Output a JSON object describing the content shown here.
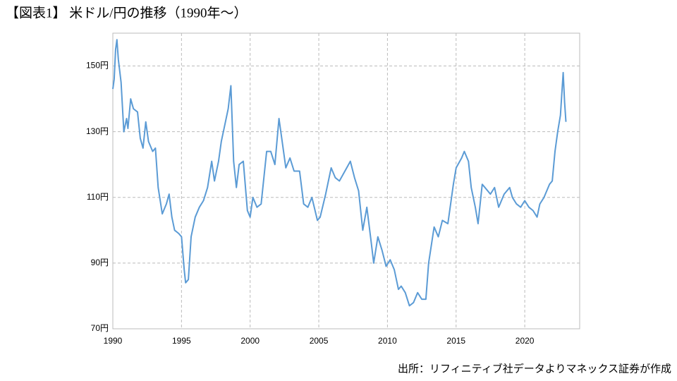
{
  "chart_data": {
    "type": "line",
    "title": "【図表1】 米ドル/円の推移（1990年～）",
    "source": "出所：リフィニティブ社データよりマネックス証券が作成",
    "x": [
      1990.0,
      1990.1,
      1990.2,
      1990.3,
      1990.4,
      1990.6,
      1990.8,
      1991.0,
      1991.1,
      1991.3,
      1991.5,
      1991.8,
      1992.0,
      1992.2,
      1992.4,
      1992.6,
      1992.9,
      1993.1,
      1993.3,
      1993.6,
      1993.9,
      1994.1,
      1994.3,
      1994.5,
      1994.8,
      1995.0,
      1995.2,
      1995.3,
      1995.5,
      1995.7,
      1996.0,
      1996.3,
      1996.6,
      1996.9,
      1997.2,
      1997.4,
      1997.7,
      1997.9,
      1998.2,
      1998.4,
      1998.6,
      1998.8,
      1999.0,
      1999.2,
      1999.5,
      1999.8,
      2000.0,
      2000.2,
      2000.5,
      2000.8,
      2001.0,
      2001.2,
      2001.5,
      2001.8,
      2002.1,
      2002.3,
      2002.6,
      2002.9,
      2003.2,
      2003.6,
      2003.9,
      2004.2,
      2004.5,
      2004.9,
      2005.1,
      2005.5,
      2005.9,
      2006.2,
      2006.5,
      2006.9,
      2007.3,
      2007.6,
      2007.9,
      2008.2,
      2008.5,
      2008.8,
      2009.0,
      2009.3,
      2009.6,
      2009.9,
      2010.2,
      2010.5,
      2010.8,
      2011.0,
      2011.3,
      2011.6,
      2011.9,
      2012.2,
      2012.5,
      2012.8,
      2013.0,
      2013.4,
      2013.7,
      2014.0,
      2014.4,
      2014.8,
      2015.0,
      2015.4,
      2015.6,
      2015.9,
      2016.1,
      2016.4,
      2016.6,
      2016.9,
      2017.1,
      2017.5,
      2017.8,
      2018.1,
      2018.5,
      2018.9,
      2019.1,
      2019.4,
      2019.7,
      2020.0,
      2020.3,
      2020.6,
      2020.9,
      2021.1,
      2021.4,
      2021.8,
      2022.0,
      2022.2,
      2022.4,
      2022.6,
      2022.8,
      2022.9,
      2023.0
    ],
    "series": [
      {
        "color": "#5b9bd5",
        "values": [
          143,
          146,
          155,
          158,
          152,
          145,
          130,
          134,
          131,
          140,
          137,
          136,
          128,
          125,
          133,
          127,
          124,
          125,
          113,
          105,
          108,
          111,
          104,
          100,
          99,
          98,
          88,
          84,
          85,
          98,
          104,
          107,
          109,
          113,
          121,
          115,
          121,
          127,
          133,
          137,
          144,
          121,
          113,
          120,
          121,
          106,
          104,
          110,
          107,
          108,
          116,
          124,
          124,
          120,
          134,
          128,
          119,
          122,
          118,
          118,
          108,
          107,
          110,
          103,
          104,
          111,
          119,
          116,
          115,
          118,
          121,
          116,
          112,
          100,
          107,
          97,
          90,
          98,
          94,
          89,
          91,
          88,
          82,
          83,
          81,
          77,
          78,
          81,
          79,
          79,
          90,
          101,
          98,
          103,
          102,
          114,
          119,
          122,
          124,
          121,
          113,
          107,
          102,
          114,
          113,
          111,
          113,
          107,
          111,
          113,
          110,
          108,
          107,
          109,
          107,
          106,
          104,
          108,
          110,
          114,
          115,
          124,
          130,
          135,
          148,
          139,
          133
        ]
      }
    ],
    "xlim": [
      1990,
      2024
    ],
    "xticks": [
      1990,
      1995,
      2000,
      2005,
      2010,
      2015,
      2020
    ],
    "ylim": [
      70,
      160
    ],
    "yticks": [
      {
        "value": 70,
        "label": "70円"
      },
      {
        "value": 90,
        "label": "90円"
      },
      {
        "value": 110,
        "label": "110円"
      },
      {
        "value": 130,
        "label": "130円"
      },
      {
        "value": 150,
        "label": "150円"
      }
    ],
    "grid": true
  }
}
